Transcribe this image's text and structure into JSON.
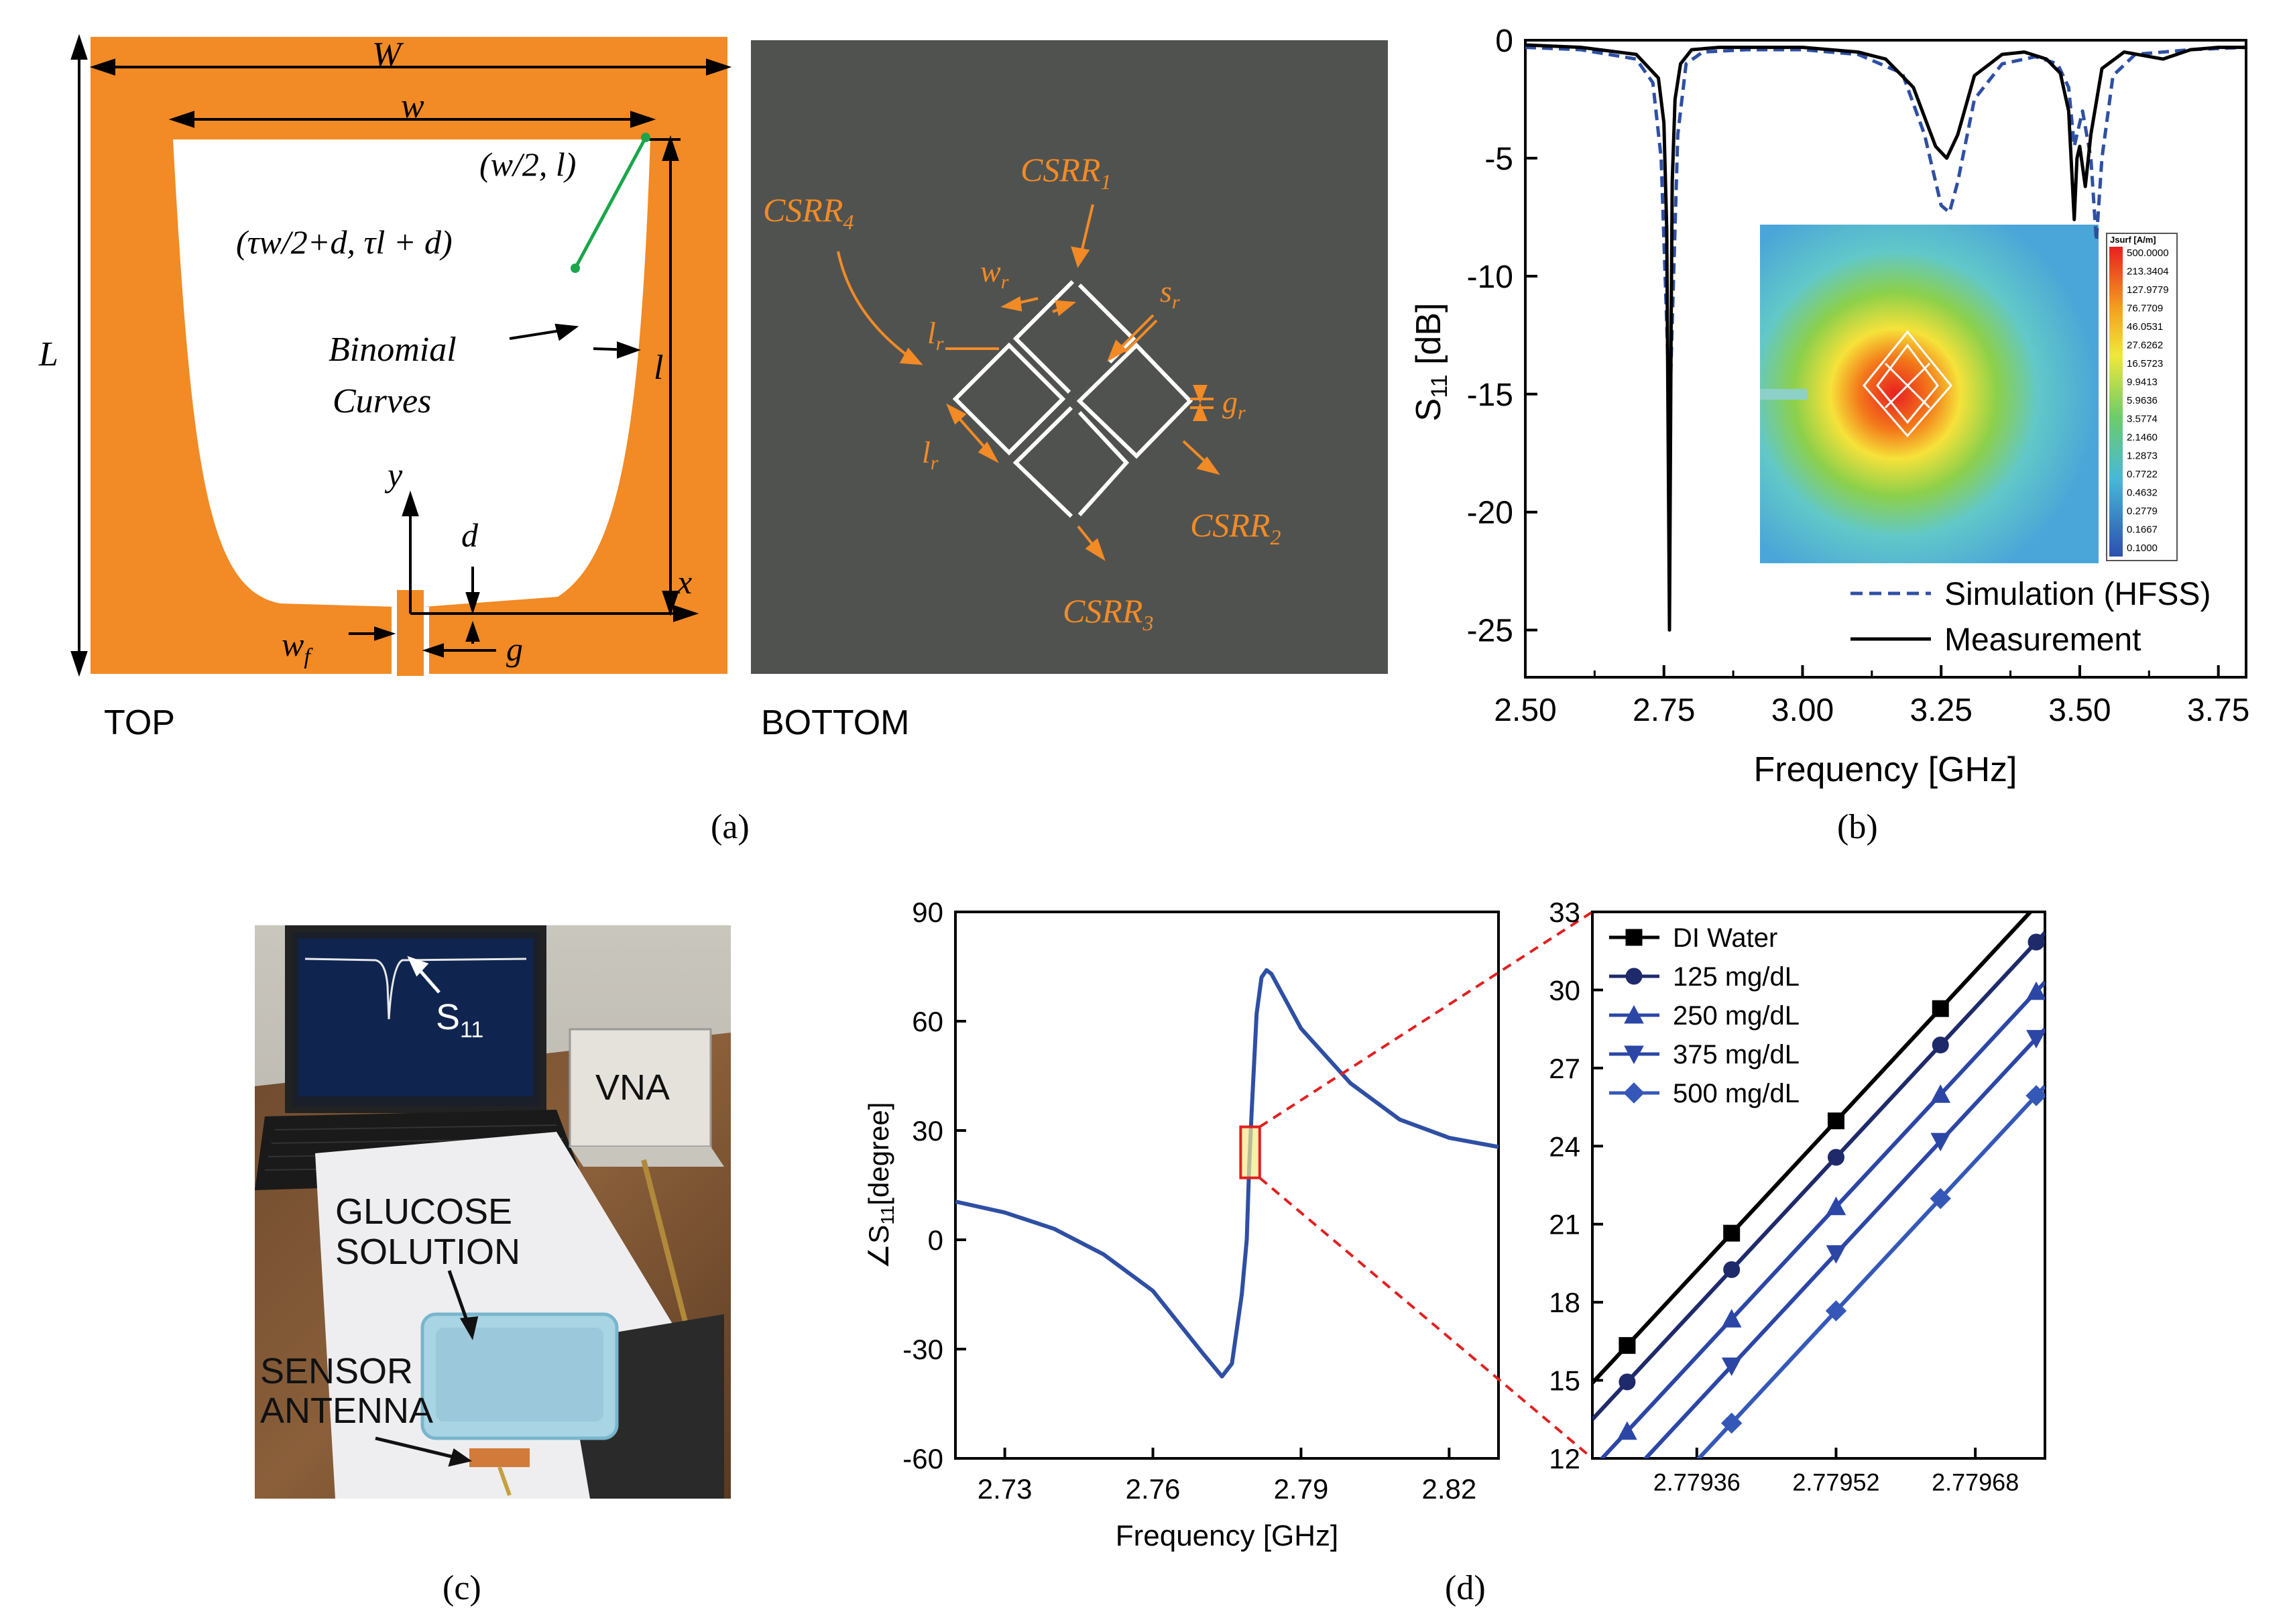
{
  "panel_a": {
    "top": {
      "W": "W",
      "w": "w",
      "L": "L",
      "l": "l",
      "point_outer": "(w/2, l)",
      "point_inner": "(τw/2+d, τl + d)",
      "binomial": [
        "Binomial",
        "Curves"
      ],
      "y": "y",
      "x": "x",
      "d": "d",
      "g": "g",
      "wf": "w",
      "wf_sub": "f",
      "label": "TOP",
      "colors": {
        "copper": "#f28a25",
        "slot": "#ffffff",
        "arrow": "#1aa64a"
      }
    },
    "bottom": {
      "csrr1": "CSRR",
      "csrr1_sub": "1",
      "csrr2": "CSRR",
      "csrr2_sub": "2",
      "csrr3": "CSRR",
      "csrr3_sub": "3",
      "csrr4": "CSRR",
      "csrr4_sub": "4",
      "wr": "w",
      "wr_sub": "r",
      "sr": "s",
      "sr_sub": "r",
      "lr1": "l",
      "lr1_sub": "r",
      "lr2": "l",
      "lr2_sub": "r",
      "gr": "g",
      "gr_sub": "r",
      "label": "BOTTOM",
      "colors": {
        "ground": "#505250",
        "accent": "#f28a25"
      }
    },
    "caption": "(a)"
  },
  "panel_b": {
    "caption": "(b)",
    "inset_legend": {
      "title": "Jsurf [A/m]",
      "values": [
        "500.0000",
        "213.3404",
        "127.9779",
        "76.7709",
        "46.0531",
        "27.6262",
        "16.5723",
        "9.9413",
        "5.9636",
        "3.5774",
        "2.1460",
        "1.2873",
        "0.7722",
        "0.4632",
        "0.2779",
        "0.1667",
        "0.1000"
      ]
    }
  },
  "panel_c": {
    "caption": "(c)",
    "s11": "S",
    "s11_sub": "11",
    "vna": "VNA",
    "glucose": [
      "GLUCOSE",
      "SOLUTION"
    ],
    "sensor": [
      "SENSOR",
      "ANTENNA"
    ]
  },
  "panel_d": {
    "caption": "(d)"
  },
  "chart_data": [
    {
      "id": "s11_magnitude",
      "type": "line",
      "title": "",
      "xlabel": "Frequency [GHz]",
      "ylabel": "S11 [dB]",
      "ylabel_main": "S",
      "ylabel_sub": "11",
      "ylabel_unit": " [dB]",
      "xlim": [
        2.5,
        3.8
      ],
      "ylim": [
        -27,
        0
      ],
      "xticks": [
        "2.50",
        "2.75",
        "3.00",
        "3.25",
        "3.50",
        "3.75"
      ],
      "yticks": [
        "0",
        "-5",
        "-10",
        "-15",
        "-20",
        "-25"
      ],
      "legend_position": "bottom-right",
      "series": [
        {
          "name": "Simulation (HFSS)",
          "style": "dashed",
          "color": "#2e4fa3",
          "x": [
            2.5,
            2.6,
            2.7,
            2.73,
            2.745,
            2.755,
            2.76,
            2.765,
            2.775,
            2.79,
            2.82,
            2.9,
            3.0,
            3.1,
            3.18,
            3.22,
            3.25,
            3.265,
            3.28,
            3.31,
            3.36,
            3.42,
            3.46,
            3.48,
            3.49,
            3.505,
            3.52,
            3.53,
            3.54,
            3.56,
            3.6,
            3.7,
            3.8
          ],
          "y": [
            -0.3,
            -0.4,
            -0.8,
            -1.8,
            -5,
            -12,
            -16,
            -12,
            -4,
            -1.0,
            -0.5,
            -0.4,
            -0.4,
            -0.6,
            -1.4,
            -4,
            -7,
            -7.3,
            -6,
            -2.5,
            -1.0,
            -0.7,
            -1.0,
            -2.0,
            -4.5,
            -3.0,
            -5.0,
            -8.5,
            -5,
            -1.5,
            -0.6,
            -0.4,
            -0.3
          ]
        },
        {
          "name": "Measurement",
          "style": "solid",
          "color": "#000000",
          "x": [
            2.5,
            2.6,
            2.7,
            2.74,
            2.75,
            2.755,
            2.76,
            2.763,
            2.765,
            2.77,
            2.78,
            2.8,
            2.85,
            3.0,
            3.1,
            3.15,
            3.2,
            3.24,
            3.26,
            3.28,
            3.31,
            3.36,
            3.4,
            3.44,
            3.465,
            3.48,
            3.49,
            3.495,
            3.5,
            3.51,
            3.52,
            3.54,
            3.58,
            3.65,
            3.7,
            3.75,
            3.8
          ],
          "y": [
            -0.2,
            -0.3,
            -0.6,
            -1.6,
            -3.5,
            -8,
            -25,
            -12,
            -6,
            -2.5,
            -1.0,
            -0.4,
            -0.3,
            -0.3,
            -0.5,
            -0.8,
            -2.0,
            -4.5,
            -5.0,
            -4.0,
            -1.5,
            -0.6,
            -0.5,
            -0.8,
            -1.4,
            -3.0,
            -7.6,
            -5.0,
            -4.5,
            -6.2,
            -4.0,
            -1.2,
            -0.5,
            -0.8,
            -0.4,
            -0.3,
            -0.3
          ]
        }
      ]
    },
    {
      "id": "s11_phase",
      "type": "line",
      "title": "",
      "xlabel": "Frequency [GHz]",
      "ylabel": "∠S11[degree]",
      "ylabel_main": "∠S",
      "ylabel_sub": "11",
      "ylabel_unit": "[degree]",
      "xlim": [
        2.72,
        2.83
      ],
      "ylim": [
        -60,
        90
      ],
      "xticks": [
        "2.73",
        "2.76",
        "2.79",
        "2.82"
      ],
      "yticks": [
        "90",
        "60",
        "30",
        "0",
        "-30",
        "-60"
      ],
      "series": [
        {
          "name": "",
          "color": "#2e4fa3",
          "x": [
            2.72,
            2.73,
            2.74,
            2.75,
            2.76,
            2.77,
            2.774,
            2.776,
            2.778,
            2.779,
            2.7795,
            2.78,
            2.781,
            2.782,
            2.783,
            2.784,
            2.786,
            2.79,
            2.8,
            2.81,
            2.82,
            2.83
          ],
          "y": [
            10.5,
            7.5,
            3,
            -4,
            -14,
            -31,
            -37.5,
            -34,
            -15,
            0,
            20,
            35,
            62,
            72,
            74,
            73,
            68,
            58,
            43,
            33,
            28,
            25.5
          ]
        }
      ],
      "zoom_box": {
        "x": [
          2.7794,
          2.78
        ],
        "y": [
          17,
          31
        ]
      }
    },
    {
      "id": "s11_phase_zoom",
      "type": "line",
      "title": "",
      "xlabel": "",
      "ylabel": "",
      "xlim": [
        2.77924,
        2.77976
      ],
      "ylim": [
        12,
        33
      ],
      "xticks": [
        "2.77936",
        "2.77952",
        "2.77968"
      ],
      "yticks": [
        "33",
        "30",
        "27",
        "24",
        "21",
        "18",
        "15",
        "12"
      ],
      "legend_position": "top-left",
      "x": [
        2.77924,
        2.77976
      ],
      "series": [
        {
          "name": "DI Water",
          "color": "#000000",
          "marker": "square",
          "y": [
            14.9,
            33.6
          ]
        },
        {
          "name": "125 mg/dL",
          "color": "#1f2a6b",
          "marker": "circle",
          "y": [
            13.5,
            32.2
          ]
        },
        {
          "name": "250 mg/dL",
          "color": "#2c46a6",
          "marker": "triangle-up",
          "y": [
            11.6,
            30.3
          ]
        },
        {
          "name": "375 mg/dL",
          "color": "#2c46a6",
          "marker": "triangle-down",
          "y": [
            9.8,
            28.5
          ]
        },
        {
          "name": "500 mg/dL",
          "color": "#3558b8",
          "marker": "diamond",
          "y": [
            7.6,
            26.3
          ]
        }
      ],
      "marker_x": [
        2.77928,
        2.7794,
        2.77952,
        2.77964,
        2.77975
      ]
    }
  ]
}
